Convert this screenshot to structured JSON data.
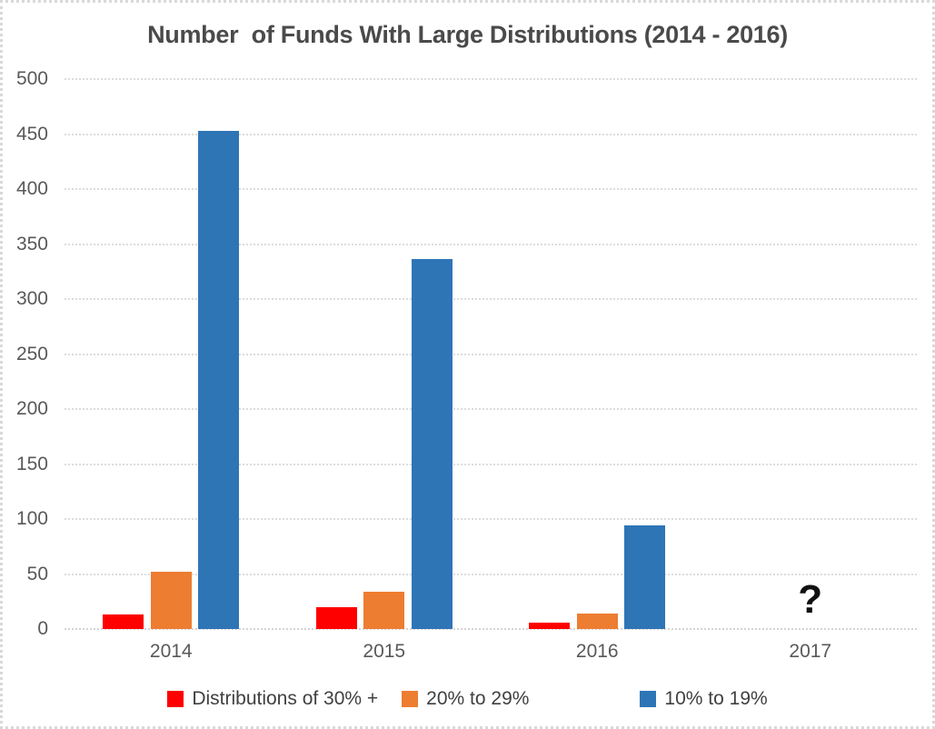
{
  "title": "Number  of Funds With Large Distributions (2014 - 2016)",
  "colors": {
    "series_red": "#FE0000",
    "series_orange": "#ED7D31",
    "series_blue": "#2E75B6",
    "title_text": "#4A4A4A",
    "axis_text": "#595959",
    "legend_text": "#404040",
    "gridline": "#DCDCDC",
    "background": "#FFFFFF"
  },
  "chart_data": {
    "type": "bar",
    "title": "Number  of Funds With Large Distributions (2014 - 2016)",
    "categories": [
      "2014",
      "2015",
      "2016",
      "2017"
    ],
    "series": [
      {
        "name": "Distributions of 30% +",
        "color": "#FE0000",
        "values": [
          13,
          20,
          6,
          null
        ]
      },
      {
        "name": "20% to 29%",
        "color": "#ED7D31",
        "values": [
          52,
          34,
          14,
          null
        ]
      },
      {
        "name": "10% to 19%",
        "color": "#2E75B6",
        "values": [
          453,
          336,
          94,
          null
        ]
      }
    ],
    "xlabel": "",
    "ylabel": "",
    "ylim": [
      0,
      500
    ],
    "yticks": [
      0,
      50,
      100,
      150,
      200,
      250,
      300,
      350,
      400,
      450,
      500
    ],
    "grid": true,
    "legend_position": "bottom",
    "annotations": [
      {
        "text": "?",
        "category": "2017",
        "meaning": "unknown-future-value"
      }
    ]
  }
}
